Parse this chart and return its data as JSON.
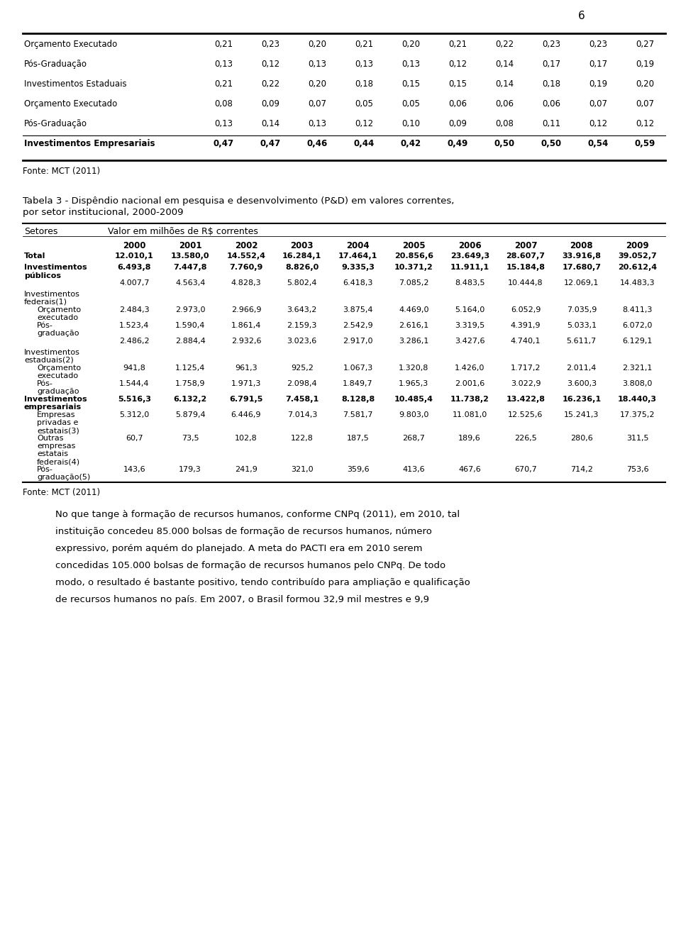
{
  "page_number": "6",
  "top_table": {
    "rows": [
      {
        "label": "Orçamento Executado",
        "bold": false,
        "values": [
          "0,21",
          "0,23",
          "0,20",
          "0,21",
          "0,20",
          "0,21",
          "0,22",
          "0,23",
          "0,23",
          "0,27"
        ]
      },
      {
        "label": "Pós-Graduação",
        "bold": false,
        "values": [
          "0,13",
          "0,12",
          "0,13",
          "0,13",
          "0,13",
          "0,12",
          "0,14",
          "0,17",
          "0,17",
          "0,19"
        ]
      },
      {
        "label": "Investimentos Estaduais",
        "bold": false,
        "values": [
          "0,21",
          "0,22",
          "0,20",
          "0,18",
          "0,15",
          "0,15",
          "0,14",
          "0,18",
          "0,19",
          "0,20"
        ]
      },
      {
        "label": "Orçamento Executado",
        "bold": false,
        "values": [
          "0,08",
          "0,09",
          "0,07",
          "0,05",
          "0,05",
          "0,06",
          "0,06",
          "0,06",
          "0,07",
          "0,07"
        ]
      },
      {
        "label": "Pós-Graduação",
        "bold": false,
        "values": [
          "0,13",
          "0,14",
          "0,13",
          "0,12",
          "0,10",
          "0,09",
          "0,08",
          "0,11",
          "0,12",
          "0,12"
        ]
      },
      {
        "label": "Investimentos Empresariais",
        "bold": true,
        "values": [
          "0,47",
          "0,47",
          "0,46",
          "0,44",
          "0,42",
          "0,49",
          "0,50",
          "0,50",
          "0,54",
          "0,59"
        ]
      }
    ],
    "fonte": "Fonte: MCT (2011)"
  },
  "table3_title_line1": "Tabela 3 - Dispêndio nacional em pesquisa e desenvolvimento (P&D) em valores correntes,",
  "table3_title_line2": "por setor institucional, 2000-2009",
  "table3_header_col1": "Setores",
  "table3_header_col2": "Valor em milhões de R$ correntes",
  "table3_years": [
    "2000",
    "2001",
    "2002",
    "2003",
    "2004",
    "2005",
    "2006",
    "2007",
    "2008",
    "2009"
  ],
  "table3_rows": [
    {
      "label": "Total",
      "bold": true,
      "lines": 1,
      "values": [
        "12.010,1",
        "13.580,0",
        "14.552,4",
        "16.284,1",
        "17.464,1",
        "20.856,6",
        "23.649,3",
        "28.607,7",
        "33.916,8",
        "39.052,7"
      ]
    },
    {
      "label": "Investimentos\npúblicos",
      "bold": true,
      "lines": 2,
      "values": [
        "6.493,8",
        "7.447,8",
        "7.760,9",
        "8.826,0",
        "9.335,3",
        "10.371,2",
        "11.911,1",
        "15.184,8",
        "17.680,7",
        "20.612,4"
      ]
    },
    {
      "label": "",
      "bold": false,
      "lines": 1,
      "values": [
        "4.007,7",
        "4.563,4",
        "4.828,3",
        "5.802,4",
        "6.418,3",
        "7.085,2",
        "8.483,5",
        "10.444,8",
        "12.069,1",
        "14.483,3"
      ]
    },
    {
      "label": "Investimentos\nfederais(1)",
      "bold": false,
      "lines": 2,
      "values": [
        "",
        "",
        "",
        "",
        "",
        "",
        "",
        "",
        "",
        ""
      ]
    },
    {
      "label": "Orçamento\nexecutado",
      "bold": false,
      "lines": 2,
      "indent": true,
      "values": [
        "2.484,3",
        "2.973,0",
        "2.966,9",
        "3.643,2",
        "3.875,4",
        "4.469,0",
        "5.164,0",
        "6.052,9",
        "7.035,9",
        "8.411,3"
      ]
    },
    {
      "label": "Pós-\ngraduação",
      "bold": false,
      "lines": 2,
      "indent": true,
      "values": [
        "1.523,4",
        "1.590,4",
        "1.861,4",
        "2.159,3",
        "2.542,9",
        "2.616,1",
        "3.319,5",
        "4.391,9",
        "5.033,1",
        "6.072,0"
      ]
    },
    {
      "label": "",
      "bold": false,
      "lines": 1,
      "values": [
        "2.486,2",
        "2.884,4",
        "2.932,6",
        "3.023,6",
        "2.917,0",
        "3.286,1",
        "3.427,6",
        "4.740,1",
        "5.611,7",
        "6.129,1"
      ]
    },
    {
      "label": "Investimentos\nestaduais(2)",
      "bold": false,
      "lines": 2,
      "values": [
        "",
        "",
        "",
        "",
        "",
        "",
        "",
        "",
        "",
        ""
      ]
    },
    {
      "label": "Orçamento\nexecutado",
      "bold": false,
      "lines": 2,
      "indent": true,
      "values": [
        "941,8",
        "1.125,4",
        "961,3",
        "925,2",
        "1.067,3",
        "1.320,8",
        "1.426,0",
        "1.717,2",
        "2.011,4",
        "2.321,1"
      ]
    },
    {
      "label": "Pós-\ngraduação",
      "bold": false,
      "lines": 2,
      "indent": true,
      "values": [
        "1.544,4",
        "1.758,9",
        "1.971,3",
        "2.098,4",
        "1.849,7",
        "1.965,3",
        "2.001,6",
        "3.022,9",
        "3.600,3",
        "3.808,0"
      ]
    },
    {
      "label": "Investimentos\nempresariais",
      "bold": true,
      "lines": 2,
      "values": [
        "5.516,3",
        "6.132,2",
        "6.791,5",
        "7.458,1",
        "8.128,8",
        "10.485,4",
        "11.738,2",
        "13.422,8",
        "16.236,1",
        "18.440,3"
      ]
    },
    {
      "label": "Empresas\nprivadas e\nestatais(3)",
      "bold": false,
      "lines": 3,
      "indent": true,
      "values": [
        "5.312,0",
        "5.879,4",
        "6.446,9",
        "7.014,3",
        "7.581,7",
        "9.803,0",
        "11.081,0",
        "12.525,6",
        "15.241,3",
        "17.375,2"
      ]
    },
    {
      "label": "Outras\nempresas\nestatais\nfederais(4)",
      "bold": false,
      "lines": 4,
      "indent": true,
      "values": [
        "60,7",
        "73,5",
        "102,8",
        "122,8",
        "187,5",
        "268,7",
        "189,6",
        "226,5",
        "280,6",
        "311,5"
      ]
    },
    {
      "label": "Pós-\ngraduação(5)",
      "bold": false,
      "lines": 2,
      "indent": true,
      "values": [
        "143,6",
        "179,3",
        "241,9",
        "321,0",
        "359,6",
        "413,6",
        "467,6",
        "670,7",
        "714,2",
        "753,6"
      ]
    }
  ],
  "table3_fonte": "Fonte: MCT (2011)",
  "body_text": [
    "No que tange à formação de recursos humanos, conforme CNPq (2011), em 2010, tal",
    "instituição concedeu 85.000 bolsas de formação de recursos humanos, número",
    "expressivo, porém aquém do planejado. A meta do PACTI era em 2010 serem",
    "concedidas 105.000 bolsas de formação de recursos humanos pelo CNPq. De todo",
    "modo, o resultado é bastante positivo, tendo contribuído para ampliação e qualificação",
    "de recursos humanos no país. Em 2007, o Brasil formou 32,9 mil mestres e 9,9"
  ],
  "bg_color": "#ffffff",
  "text_color": "#000000"
}
